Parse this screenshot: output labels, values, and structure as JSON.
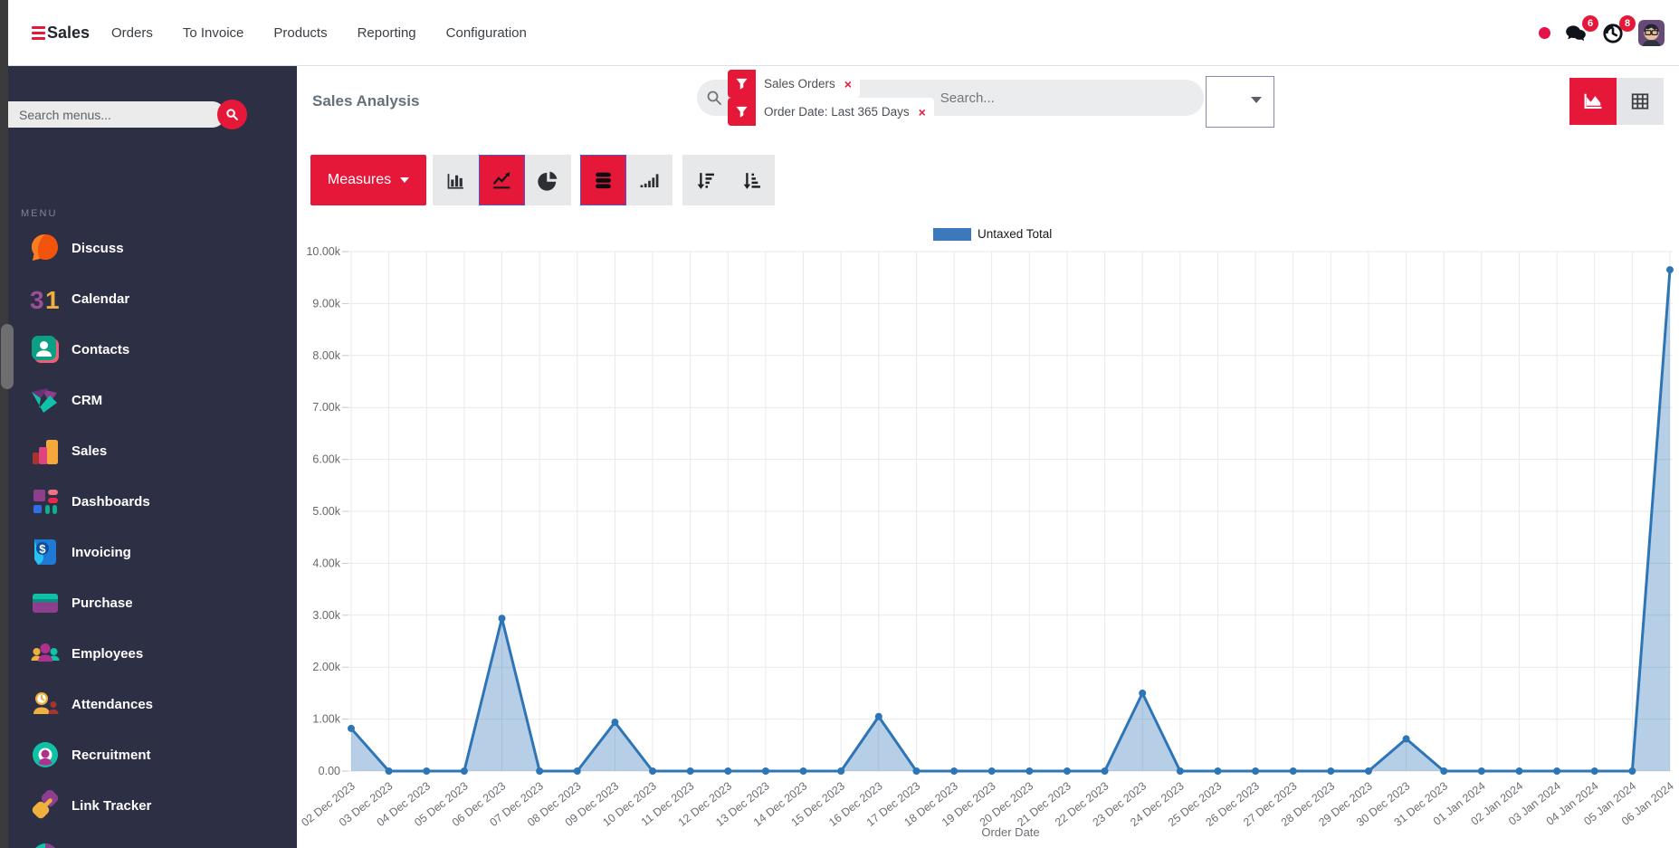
{
  "theme": {
    "accent": "#e6183a",
    "sidebar_bg": "#2d2f45"
  },
  "navbar": {
    "brand": "Sales",
    "items": [
      "Orders",
      "To Invoice",
      "Products",
      "Reporting",
      "Configuration"
    ],
    "systray": {
      "messages_badge": "6",
      "activities_badge": "8"
    }
  },
  "sidebar": {
    "search_placeholder": "Search menus...",
    "section_label": "MENU",
    "items": [
      {
        "label": "Discuss",
        "icon": "discuss-icon"
      },
      {
        "label": "Calendar",
        "icon": "calendar-icon"
      },
      {
        "label": "Contacts",
        "icon": "contacts-icon"
      },
      {
        "label": "CRM",
        "icon": "crm-icon"
      },
      {
        "label": "Sales",
        "icon": "sales-icon"
      },
      {
        "label": "Dashboards",
        "icon": "dashboards-icon"
      },
      {
        "label": "Invoicing",
        "icon": "invoicing-icon"
      },
      {
        "label": "Purchase",
        "icon": "purchase-icon"
      },
      {
        "label": "Employees",
        "icon": "employees-icon"
      },
      {
        "label": "Attendances",
        "icon": "attendances-icon"
      },
      {
        "label": "Recruitment",
        "icon": "recruitment-icon"
      },
      {
        "label": "Link Tracker",
        "icon": "link-tracker-icon"
      },
      {
        "label": "",
        "icon": "pie-app-icon"
      }
    ]
  },
  "content": {
    "title": "Sales Analysis",
    "search": {
      "facets": [
        {
          "icon": "filter-icon",
          "label": "Sales Orders"
        },
        {
          "icon": "filter-icon",
          "label": "Order Date: Last 365 Days"
        }
      ],
      "placeholder": "Search..."
    },
    "toolbar": {
      "measures_label": "Measures",
      "groups": [
        {
          "buttons": [
            {
              "name": "bar-chart-button",
              "icon": "bar-chart-icon",
              "active": false
            },
            {
              "name": "line-chart-button",
              "icon": "line-chart-icon",
              "active": true
            },
            {
              "name": "pie-chart-button",
              "icon": "pie-chart-icon",
              "active": false
            }
          ]
        },
        {
          "buttons": [
            {
              "name": "stacked-button",
              "icon": "stacked-icon",
              "active": true
            },
            {
              "name": "cumulative-button",
              "icon": "cumulative-icon",
              "active": false
            }
          ]
        },
        {
          "buttons": [
            {
              "name": "sort-descending-button",
              "icon": "sort-descending-icon",
              "active": false
            },
            {
              "name": "sort-ascending-button",
              "icon": "sort-ascending-icon",
              "active": false
            }
          ]
        }
      ]
    },
    "view_switcher": [
      {
        "name": "graph-view-button",
        "icon": "area-chart-icon",
        "active": true
      },
      {
        "name": "pivot-view-button",
        "icon": "pivot-icon",
        "active": false
      }
    ]
  },
  "chart_data": {
    "type": "area",
    "title": "",
    "xlabel": "Order Date",
    "ylabel": "",
    "ylim": [
      0,
      10000
    ],
    "ytick_step": 1000,
    "ytick_labels": [
      "0.00",
      "1.00k",
      "2.00k",
      "3.00k",
      "4.00k",
      "5.00k",
      "6.00k",
      "7.00k",
      "8.00k",
      "9.00k",
      "10.00k"
    ],
    "grid": true,
    "legend_position": "top",
    "categories": [
      "02 Dec 2023",
      "03 Dec 2023",
      "04 Dec 2023",
      "05 Dec 2023",
      "06 Dec 2023",
      "07 Dec 2023",
      "08 Dec 2023",
      "09 Dec 2023",
      "10 Dec 2023",
      "11 Dec 2023",
      "12 Dec 2023",
      "13 Dec 2023",
      "14 Dec 2023",
      "15 Dec 2023",
      "16 Dec 2023",
      "17 Dec 2023",
      "18 Dec 2023",
      "19 Dec 2023",
      "20 Dec 2023",
      "21 Dec 2023",
      "22 Dec 2023",
      "23 Dec 2023",
      "24 Dec 2023",
      "25 Dec 2023",
      "26 Dec 2023",
      "27 Dec 2023",
      "28 Dec 2023",
      "29 Dec 2023",
      "30 Dec 2023",
      "31 Dec 2023",
      "01 Jan 2024",
      "02 Jan 2024",
      "03 Jan 2024",
      "04 Jan 2024",
      "05 Jan 2024",
      "06 Jan 2024"
    ],
    "series": [
      {
        "name": "Untaxed Total",
        "color": "#2e75b6",
        "fill_color": "rgba(46,117,182,0.35)",
        "values": [
          820,
          0,
          0,
          0,
          2940,
          0,
          0,
          940,
          0,
          0,
          0,
          0,
          0,
          0,
          1050,
          0,
          0,
          0,
          0,
          0,
          0,
          1500,
          0,
          0,
          0,
          0,
          0,
          0,
          620,
          0,
          0,
          0,
          0,
          0,
          0,
          9650
        ]
      }
    ]
  }
}
